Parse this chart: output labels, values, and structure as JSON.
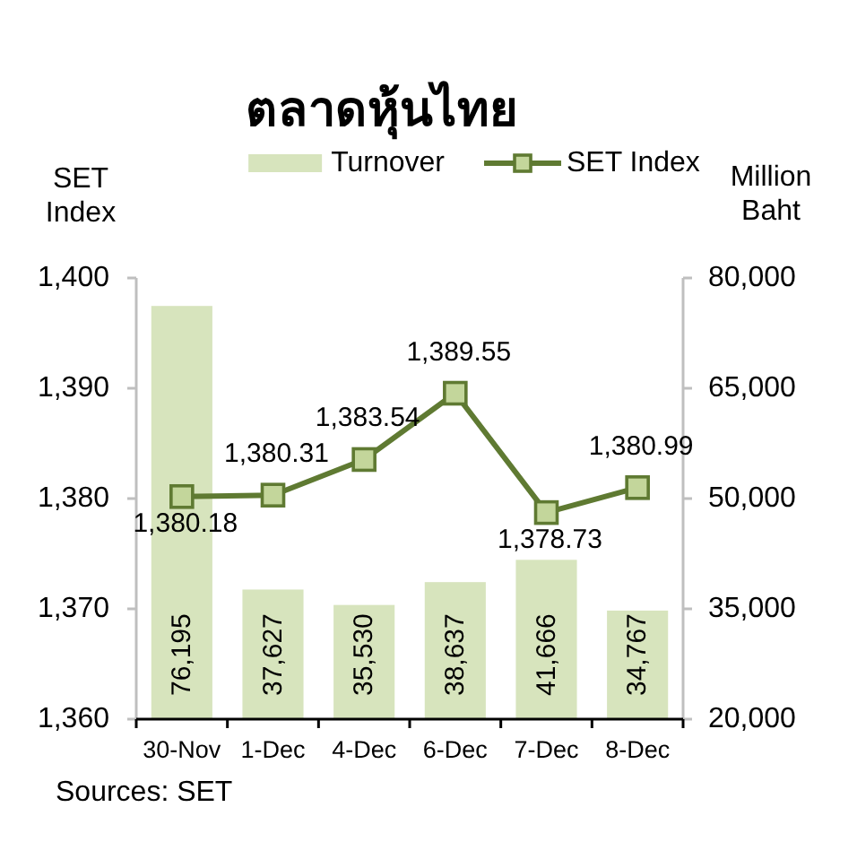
{
  "chart_data": {
    "type": "bar",
    "title": "ตลาดหุ้นไทย",
    "ylabel": "SET Index",
    "y2label": "Million Baht",
    "categories": [
      "30-Nov",
      "1-Dec",
      "4-Dec",
      "6-Dec",
      "7-Dec",
      "8-Dec"
    ],
    "series": [
      {
        "name": "Turnover",
        "axis": "y2",
        "color": "#d7e4bd",
        "values": [
          76195,
          37627,
          35530,
          38637,
          41666,
          34767
        ],
        "value_labels": [
          "76,195",
          "37,627",
          "35,530",
          "38,637",
          "41,666",
          "34,767"
        ]
      },
      {
        "name": "SET Index",
        "type": "line",
        "color": "#5f7a32",
        "values": [
          1380.18,
          1380.31,
          1383.54,
          1389.55,
          1378.73,
          1380.99
        ],
        "value_labels": [
          "1,380.18",
          "1,380.31",
          "1,383.54",
          "1,389.55",
          "1,378.73",
          "1,380.99"
        ]
      }
    ],
    "ylim": [
      1360,
      1400
    ],
    "yticks": [
      {
        "value": 1360,
        "label": "1,360"
      },
      {
        "value": 1370,
        "label": "1,370"
      },
      {
        "value": 1380,
        "label": "1,380"
      },
      {
        "value": 1390,
        "label": "1,390"
      },
      {
        "value": 1400,
        "label": "1,400"
      }
    ],
    "y2lim": [
      20000,
      80000
    ],
    "y2ticks": [
      {
        "value": 20000,
        "label": "20,000"
      },
      {
        "value": 35000,
        "label": "35,000"
      },
      {
        "value": 50000,
        "label": "50,000"
      },
      {
        "value": 65000,
        "label": "65,000"
      },
      {
        "value": 80000,
        "label": "80,000"
      }
    ],
    "marker": "square",
    "legend": "top",
    "annotations": [
      "Sources: SET"
    ]
  }
}
